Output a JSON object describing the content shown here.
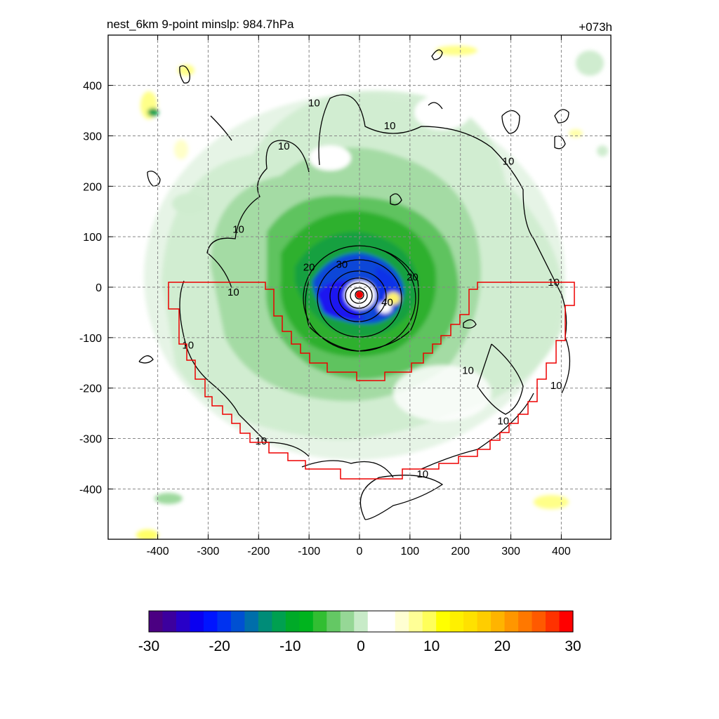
{
  "title": "nest_6km  9-point minslp: 984.7hPa",
  "time_label": "+073h",
  "chart_data": {
    "type": "heatmap",
    "title": "nest_6km  9-point minslp: 984.7hPa",
    "annotation": "+073h",
    "x_ticks": [
      -400,
      -300,
      -200,
      -100,
      0,
      100,
      200,
      300,
      400
    ],
    "y_ticks": [
      400,
      300,
      200,
      100,
      0,
      -100,
      -200,
      -300,
      -400
    ],
    "xlim": [
      -500,
      500
    ],
    "ylim": [
      -500,
      500
    ],
    "grid": true,
    "center_marker": [
      0,
      -15
    ],
    "contour_levels": [
      10,
      20,
      30,
      40
    ],
    "contour_labels": [
      {
        "text": "10",
        "x": -90,
        "y": 365
      },
      {
        "text": "10",
        "x": 60,
        "y": 320
      },
      {
        "text": "10",
        "x": -150,
        "y": 280
      },
      {
        "text": "10",
        "x": 295,
        "y": 250
      },
      {
        "text": "10",
        "x": -240,
        "y": 115
      },
      {
        "text": "10",
        "x": -250,
        "y": -10
      },
      {
        "text": "10",
        "x": 385,
        "y": 10
      },
      {
        "text": "10",
        "x": -340,
        "y": -115
      },
      {
        "text": "10",
        "x": 215,
        "y": -165
      },
      {
        "text": "10",
        "x": 390,
        "y": -195
      },
      {
        "text": "10",
        "x": 285,
        "y": -265
      },
      {
        "text": "10",
        "x": -195,
        "y": -305
      },
      {
        "text": "10",
        "x": 125,
        "y": -370
      },
      {
        "text": "20",
        "x": -100,
        "y": 40
      },
      {
        "text": "30",
        "x": -35,
        "y": 45
      },
      {
        "text": "20",
        "x": 105,
        "y": 20
      },
      {
        "text": "40",
        "x": 55,
        "y": -30
      }
    ],
    "colorbar": {
      "min": -30,
      "max": 30,
      "ticks": [
        -30,
        -20,
        -10,
        0,
        10,
        20,
        30
      ],
      "colors": [
        "#4b0082",
        "#3c009e",
        "#2800c8",
        "#0a00f0",
        "#0014ff",
        "#0032f0",
        "#0050d2",
        "#006eaa",
        "#008c78",
        "#00a050",
        "#00aa28",
        "#00b41e",
        "#32be32",
        "#64c864",
        "#96d796",
        "#c8ebc8",
        "#ffffff",
        "#ffffff",
        "#ffffd2",
        "#ffff96",
        "#ffff5a",
        "#ffff00",
        "#fff000",
        "#ffe100",
        "#ffcd00",
        "#ffb400",
        "#ff9600",
        "#ff7800",
        "#ff5a00",
        "#ff3200",
        "#ff0000"
      ]
    }
  }
}
